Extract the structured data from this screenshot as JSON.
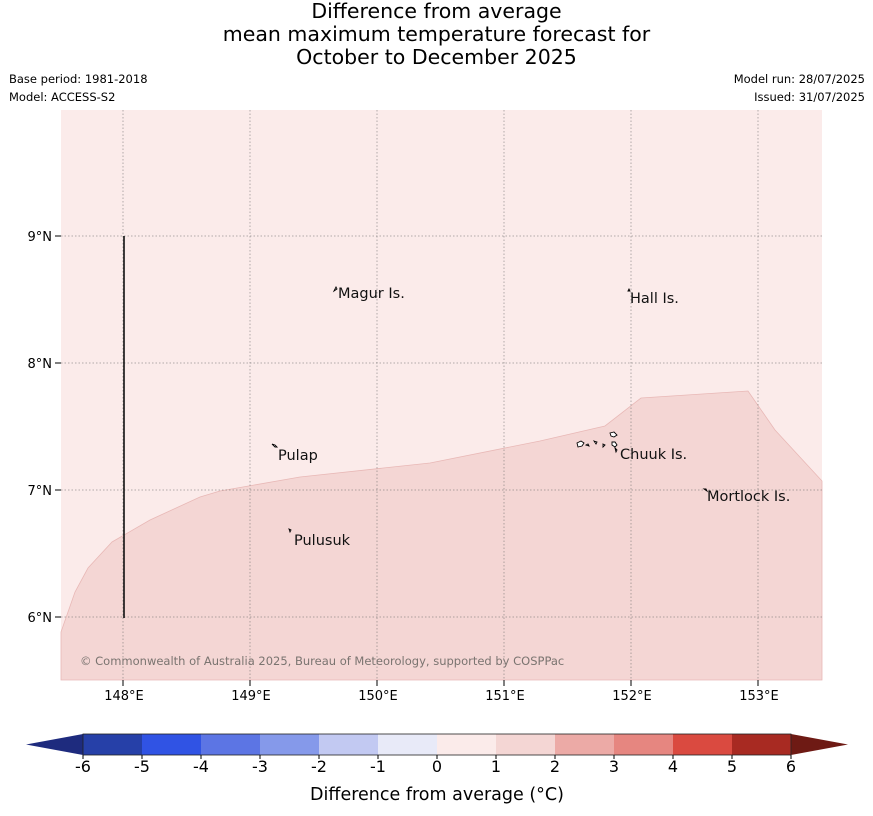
{
  "title": {
    "line1": "Difference from average",
    "line2": "mean maximum temperature forecast for",
    "line3": "October to December 2025"
  },
  "info": {
    "base_period": "Base period: 1981-2018",
    "model": "Model: ACCESS-S2",
    "model_run": "Model run: 28/07/2025",
    "issued": "Issued: 31/07/2025"
  },
  "map": {
    "lon_labels": [
      "148°E",
      "149°E",
      "150°E",
      "151°E",
      "152°E",
      "153°E"
    ],
    "lat_labels": [
      "9°N",
      "8°N",
      "7°N",
      "6°N"
    ],
    "places": [
      "Magur Is.",
      "Hall Is.",
      "Pulap",
      "Chuuk Is.",
      "Mortlock Is.",
      "Pulusuk"
    ],
    "copyright": "© Commonwealth of Australia 2025, Bureau of Meteorology, supported by COSPPac",
    "colors": {
      "band_0_1": "#fbebea",
      "band_1_2": "#f4d6d4",
      "grid": "#555555"
    }
  },
  "colorbar": {
    "tick_labels": [
      "-6",
      "-5",
      "-4",
      "-3",
      "-2",
      "-1",
      "0",
      "1",
      "2",
      "3",
      "4",
      "5",
      "6"
    ],
    "colors": [
      "#2640a8",
      "#3053e4",
      "#5c75e4",
      "#8599ea",
      "#c2c9f2",
      "#e8eaf8",
      "#fbebea",
      "#f4d6d4",
      "#ecaaa6",
      "#e68680",
      "#da4a40",
      "#a82a22"
    ],
    "low_extend_color": "#1e2b7e",
    "high_extend_color": "#6e1a14",
    "label": "Difference from average (°C)"
  }
}
